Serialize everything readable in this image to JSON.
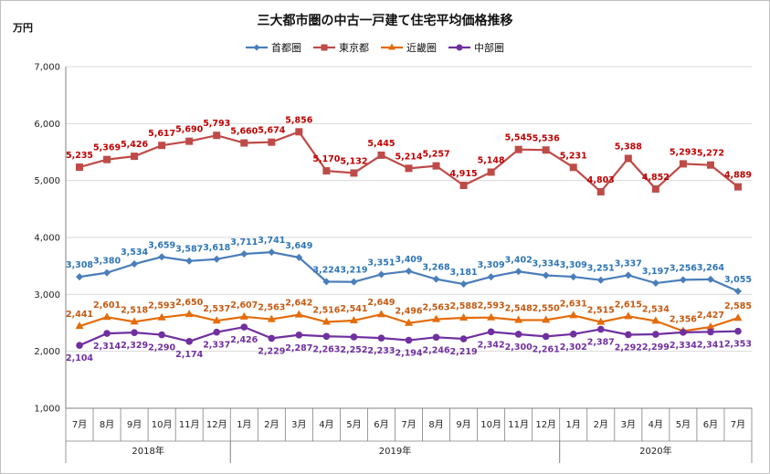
{
  "title": "三大都市圏の中古一戸建て住宅平均価格推移",
  "unit": "万円",
  "chart_data": {
    "type": "line",
    "title": "三大都市圏の中古一戸建て住宅平均価格推移",
    "ylabel": "万円",
    "ylim": [
      1000,
      7000
    ],
    "yticks": [
      "1,000",
      "2,000",
      "3,000",
      "4,000",
      "5,000",
      "6,000",
      "7,000"
    ],
    "grid": "horizontal",
    "legend_position": "top",
    "categories": [
      "7月",
      "8月",
      "9月",
      "10月",
      "11月",
      "12月",
      "1月",
      "2月",
      "3月",
      "4月",
      "5月",
      "6月",
      "7月",
      "8月",
      "9月",
      "10月",
      "11月",
      "12月",
      "1月",
      "2月",
      "3月",
      "4月",
      "5月",
      "6月",
      "7月"
    ],
    "year_groups": [
      {
        "label": "2018年",
        "start": 0,
        "end": 5
      },
      {
        "label": "2019年",
        "start": 6,
        "end": 17
      },
      {
        "label": "2020年",
        "start": 18,
        "end": 24
      }
    ],
    "series": [
      {
        "name": "首都圏",
        "color": "#4a7ebb",
        "label_color": "#2e75b6",
        "marker": "diamond",
        "values": [
          3308,
          3380,
          3534,
          3659,
          3587,
          3618,
          3711,
          3741,
          3649,
          3224,
          3219,
          3351,
          3409,
          3268,
          3181,
          3309,
          3402,
          3334,
          3309,
          3251,
          3337,
          3197,
          3256,
          3264,
          3055
        ]
      },
      {
        "name": "東京都",
        "color": "#be4b48",
        "label_color": "#c00000",
        "marker": "square",
        "values": [
          5235,
          5369,
          5426,
          5617,
          5690,
          5793,
          5660,
          5674,
          5856,
          5170,
          5132,
          5445,
          5214,
          5257,
          4915,
          5148,
          5545,
          5536,
          5231,
          4803,
          5388,
          4852,
          5293,
          5272,
          4889
        ]
      },
      {
        "name": "近畿圏",
        "color": "#e46c0a",
        "label_color": "#c55a11",
        "marker": "triangle",
        "values": [
          2441,
          2601,
          2518,
          2593,
          2650,
          2537,
          2607,
          2563,
          2642,
          2516,
          2541,
          2649,
          2496,
          2563,
          2588,
          2593,
          2548,
          2550,
          2631,
          2515,
          2615,
          2534,
          2356,
          2427,
          2585
        ]
      },
      {
        "name": "中部圏",
        "color": "#7030a0",
        "label_color": "#7030a0",
        "marker": "circle",
        "values": [
          2104,
          2314,
          2329,
          2290,
          2174,
          2337,
          2426,
          2229,
          2287,
          2263,
          2252,
          2233,
          2194,
          2246,
          2219,
          2342,
          2300,
          2261,
          2302,
          2387,
          2292,
          2299,
          2334,
          2341,
          2353
        ]
      }
    ]
  }
}
